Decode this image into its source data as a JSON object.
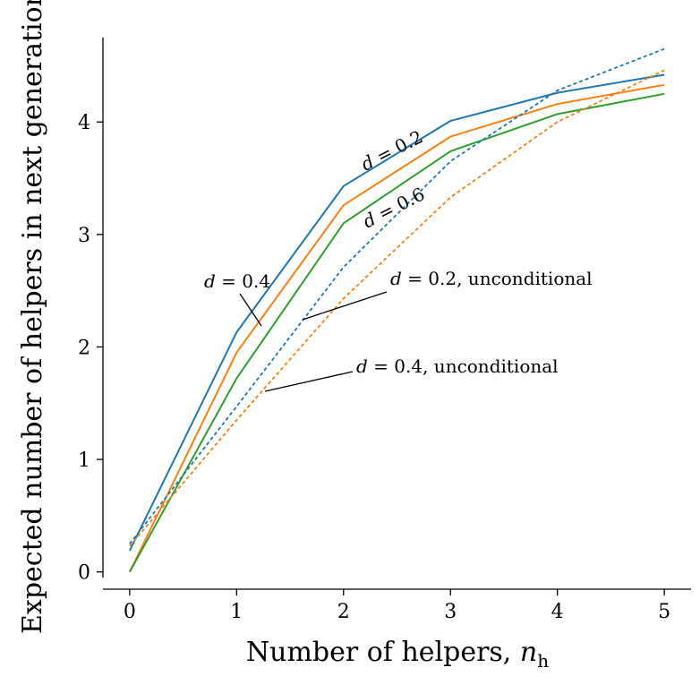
{
  "chart_data": {
    "type": "line",
    "xlabel_main": "Number of helpers, ",
    "xlabel_var": "n",
    "xlabel_sub": "h",
    "ylabel": "Expected number of helpers in next generation",
    "x": [
      0,
      1,
      2,
      3,
      4,
      5
    ],
    "xlim": [
      -0.25,
      5.25
    ],
    "ylim": [
      -0.05,
      4.75
    ],
    "xticks": [
      "0",
      "1",
      "2",
      "3",
      "4",
      "5"
    ],
    "yticks": [
      "0",
      "1",
      "2",
      "3",
      "4"
    ],
    "grid": false,
    "series": [
      {
        "id": "d02",
        "color": "#1f77b4",
        "style": "solid",
        "values": [
          0.19,
          2.13,
          3.43,
          4.01,
          4.26,
          4.42
        ]
      },
      {
        "id": "d04",
        "color": "#ff7f0e",
        "style": "solid",
        "values": [
          0.0,
          1.95,
          3.26,
          3.87,
          4.16,
          4.33
        ]
      },
      {
        "id": "d06",
        "color": "#2ca02c",
        "style": "solid",
        "values": [
          0.0,
          1.72,
          3.1,
          3.74,
          4.07,
          4.25
        ]
      },
      {
        "id": "d02u",
        "color": "#1f77b4",
        "style": "dashed",
        "values": [
          0.25,
          1.47,
          2.71,
          3.65,
          4.28,
          4.65
        ]
      },
      {
        "id": "d04u",
        "color": "#ff7f0e",
        "style": "dashed",
        "values": [
          0.23,
          1.35,
          2.43,
          3.33,
          4.0,
          4.46
        ]
      }
    ],
    "annotations": [
      {
        "id": "d02",
        "italic": "d",
        "text": " = 0.2"
      },
      {
        "id": "d06",
        "italic": "d",
        "text": " = 0.6"
      },
      {
        "id": "d04",
        "italic": "d",
        "text": " = 0.4"
      },
      {
        "id": "d02u",
        "italic": "d",
        "text": " = 0.2, unconditional"
      },
      {
        "id": "d04u",
        "italic": "d",
        "text": " = 0.4, unconditional"
      }
    ]
  }
}
